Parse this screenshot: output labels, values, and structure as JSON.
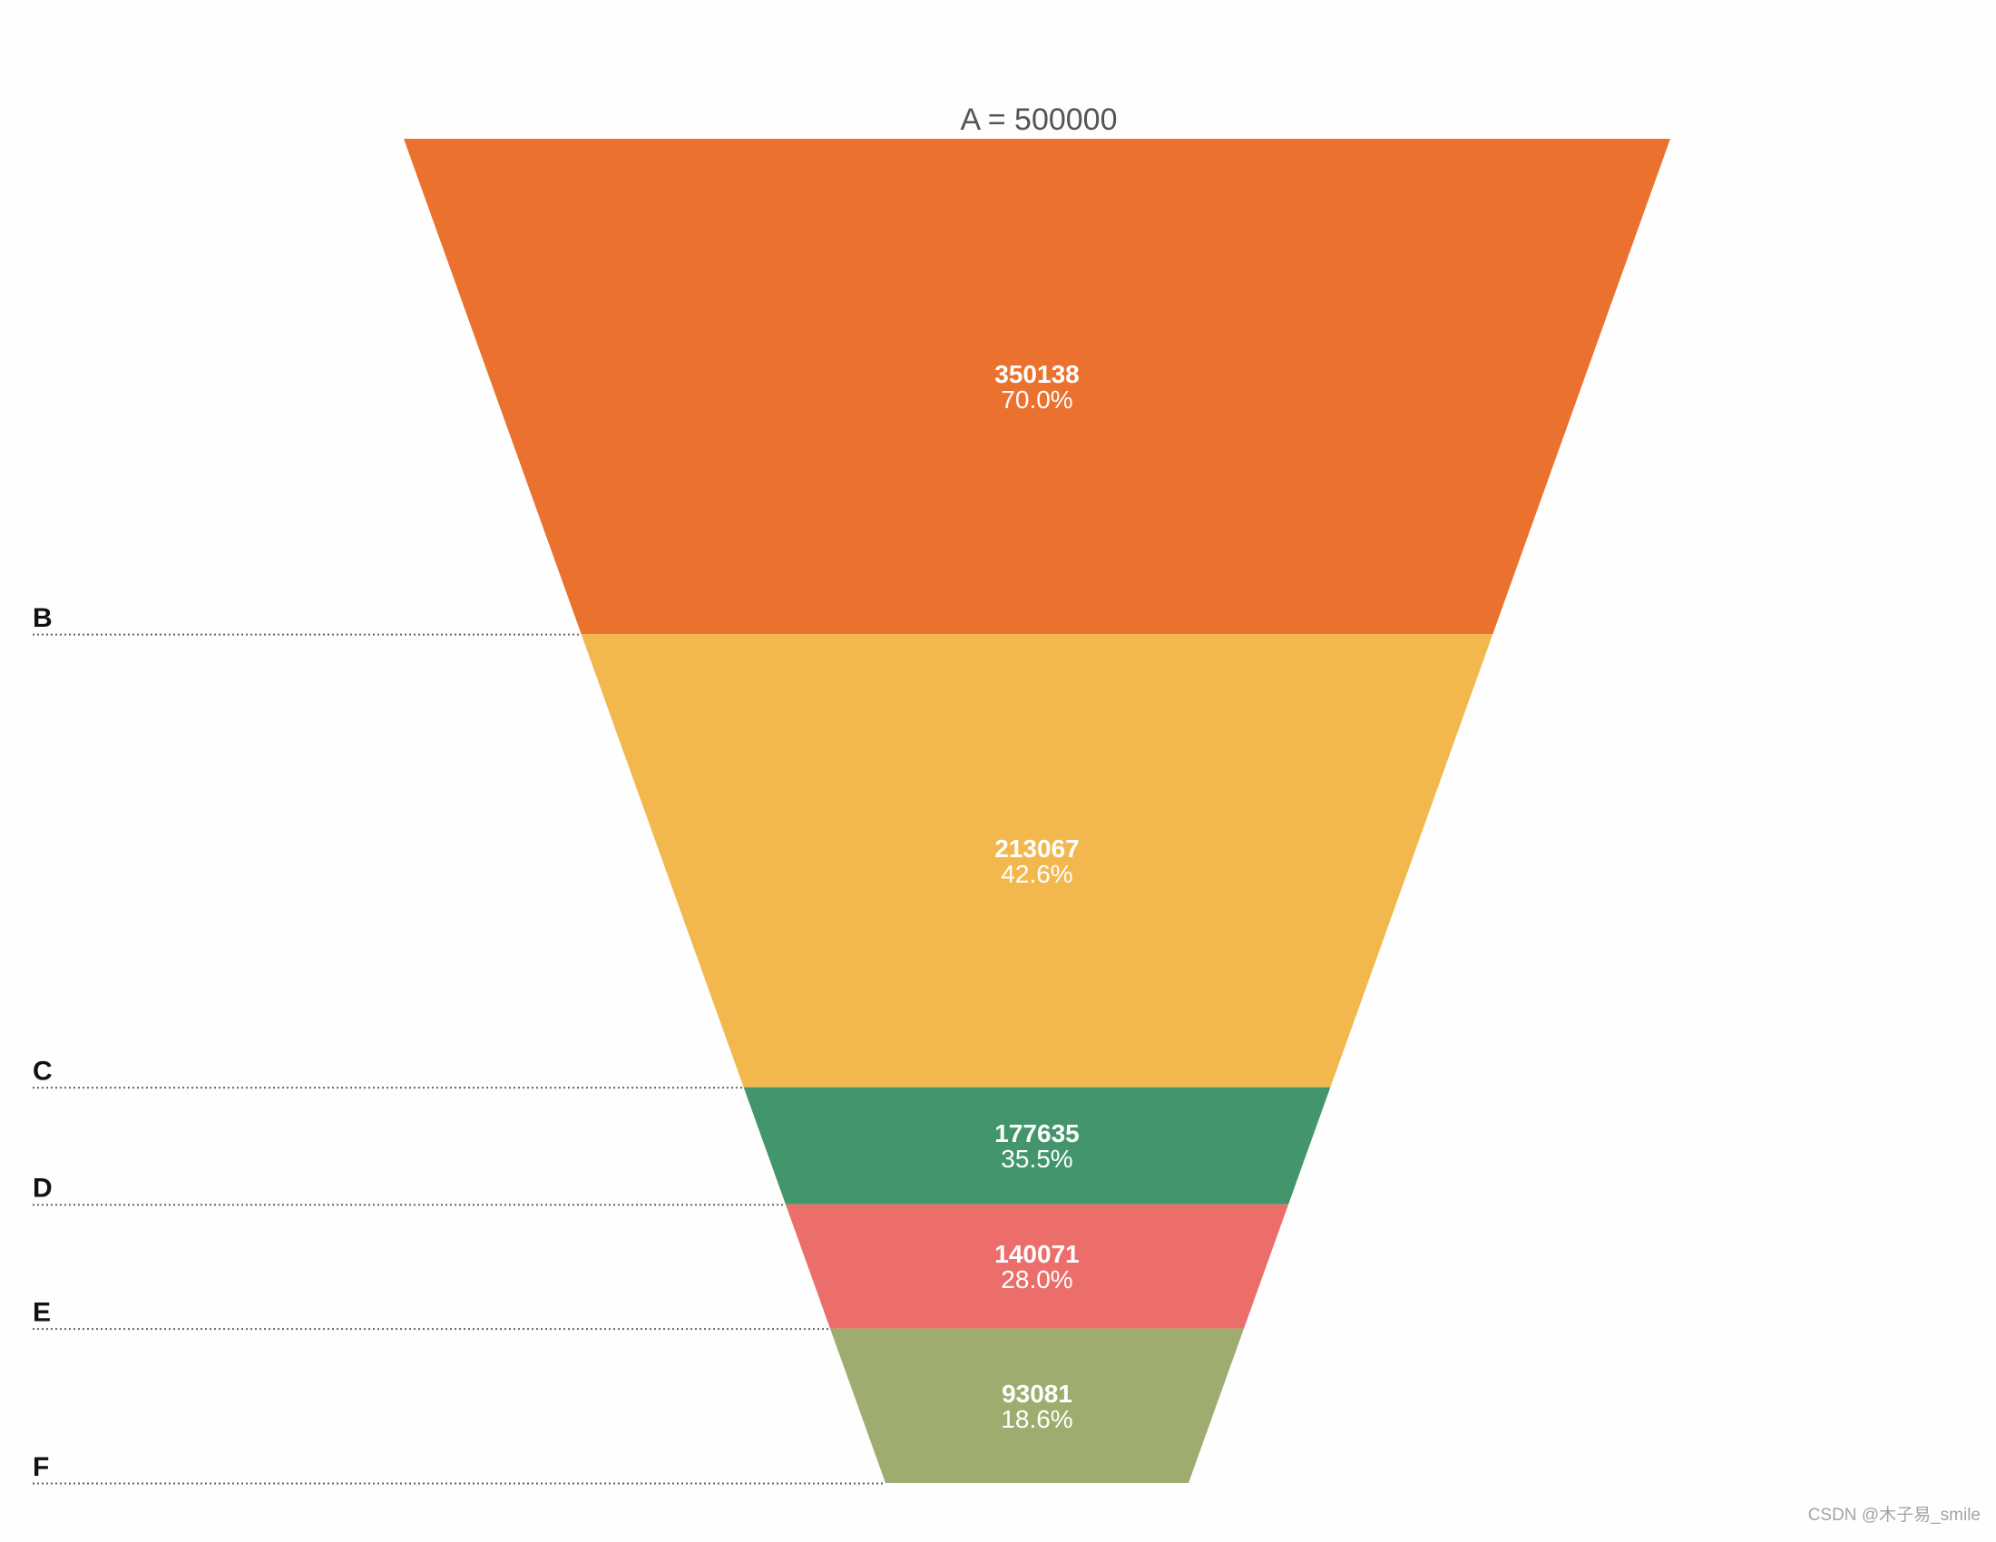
{
  "chart_data": {
    "type": "funnel",
    "top_label": "A = 500000",
    "stages": [
      {
        "label": "B",
        "value": 350138,
        "percent": "70.0%",
        "color": "#eb712e"
      },
      {
        "label": "C",
        "value": 213067,
        "percent": "42.6%",
        "color": "#f2b84d"
      },
      {
        "label": "D",
        "value": 177635,
        "percent": "35.5%",
        "color": "#43966b"
      },
      {
        "label": "E",
        "value": 140071,
        "percent": "28.0%",
        "color": "#ec6e6b"
      },
      {
        "label": "F",
        "value": 93081,
        "percent": "18.6%",
        "color": "#9ead6f"
      }
    ]
  },
  "watermark": "CSDN @木子易_smile"
}
